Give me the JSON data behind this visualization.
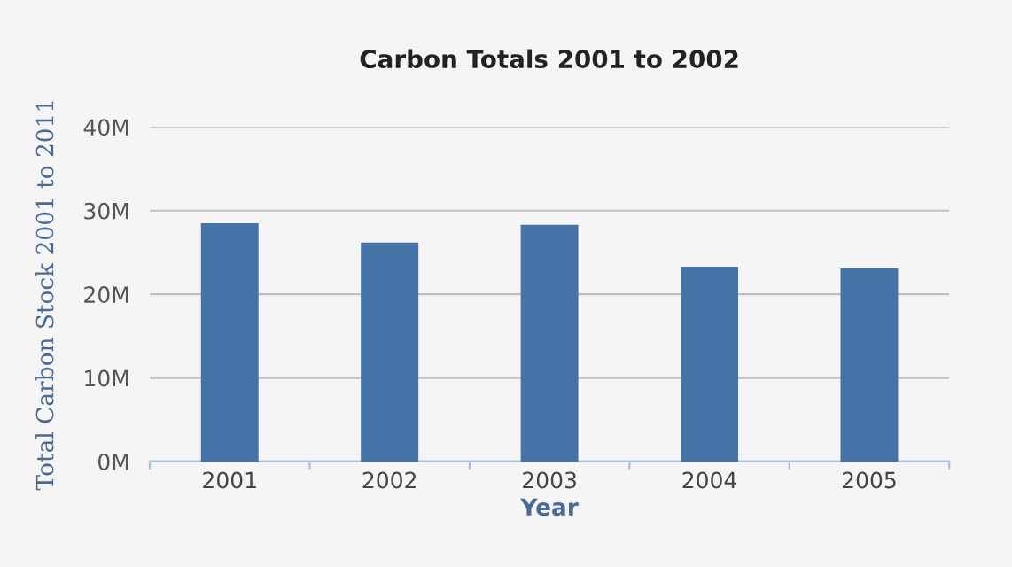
{
  "chart_data": {
    "type": "bar",
    "title": "Carbon Totals 2001 to 2002",
    "xlabel": "Year",
    "ylabel": "Total Carbon Stock 2001 to 2011",
    "categories": [
      "2001",
      "2002",
      "2003",
      "2004",
      "2005"
    ],
    "values": [
      28.5,
      26.2,
      28.3,
      23.3,
      23.1
    ],
    "color": "#4572a7",
    "ylim": [
      0,
      40
    ],
    "yticks": [
      {
        "value": 0,
        "label": "0M"
      },
      {
        "value": 10,
        "label": "10M"
      },
      {
        "value": 20,
        "label": "20M"
      },
      {
        "value": 30,
        "label": "30M"
      },
      {
        "value": 40,
        "label": "40M"
      }
    ],
    "grid": "y",
    "legend": false
  }
}
